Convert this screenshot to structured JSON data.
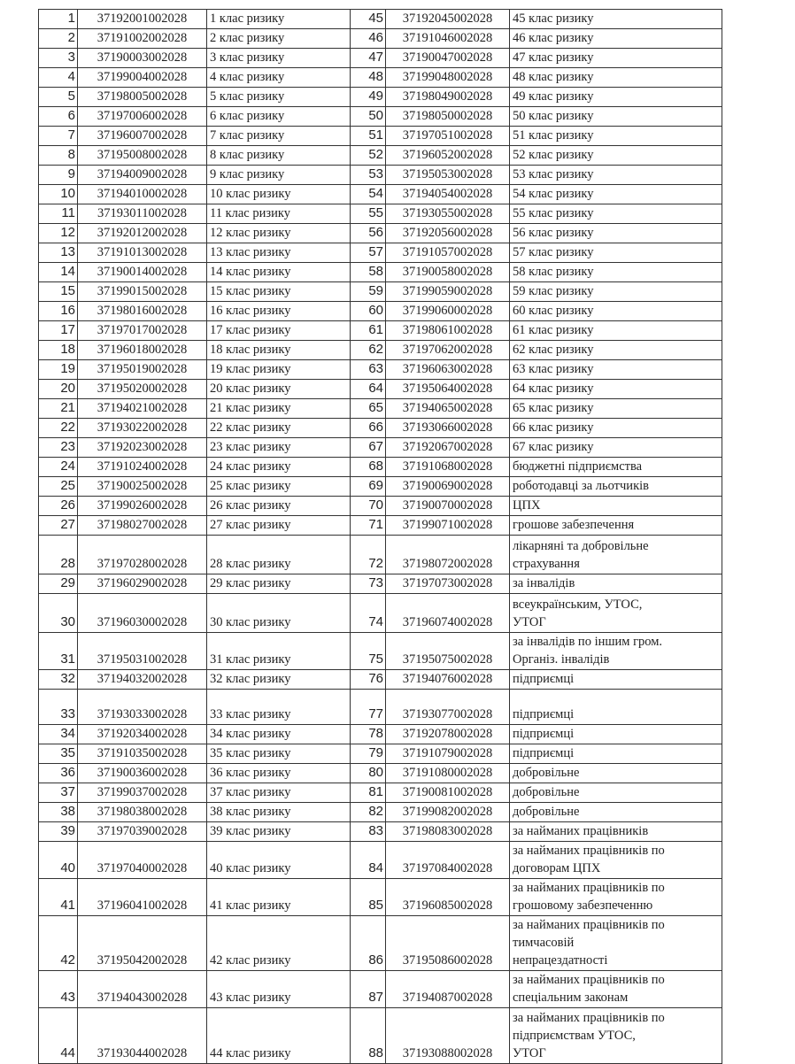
{
  "rows": [
    {
      "n1": "1",
      "c1": "37192001002028",
      "d1": "1 клас ризику",
      "n2": "45",
      "c2": "37192045002028",
      "d2": "45 клас ризику"
    },
    {
      "n1": "2",
      "c1": "37191002002028",
      "d1": "2 клас ризику",
      "n2": "46",
      "c2": "37191046002028",
      "d2": "46 клас ризику"
    },
    {
      "n1": "3",
      "c1": "37190003002028",
      "d1": "3 клас ризику",
      "n2": "47",
      "c2": "37190047002028",
      "d2": "47 клас ризику"
    },
    {
      "n1": "4",
      "c1": "37199004002028",
      "d1": "4 клас ризику",
      "n2": "48",
      "c2": "37199048002028",
      "d2": "48 клас ризику"
    },
    {
      "n1": "5",
      "c1": "37198005002028",
      "d1": "5 клас ризику",
      "n2": "49",
      "c2": "37198049002028",
      "d2": "49 клас ризику"
    },
    {
      "n1": "6",
      "c1": "37197006002028",
      "d1": "6 клас ризику",
      "n2": "50",
      "c2": "37198050002028",
      "d2": "50 клас ризику"
    },
    {
      "n1": "7",
      "c1": "37196007002028",
      "d1": "7 клас ризику",
      "n2": "51",
      "c2": "37197051002028",
      "d2": "51 клас ризику"
    },
    {
      "n1": "8",
      "c1": "37195008002028",
      "d1": "8 клас ризику",
      "n2": "52",
      "c2": "37196052002028",
      "d2": "52 клас ризику"
    },
    {
      "n1": "9",
      "c1": "37194009002028",
      "d1": "9 клас ризику",
      "n2": "53",
      "c2": "37195053002028",
      "d2": "53 клас ризику"
    },
    {
      "n1": "10",
      "c1": "37194010002028",
      "d1": "10 клас ризику",
      "n2": "54",
      "c2": "37194054002028",
      "d2": "54 клас ризику"
    },
    {
      "n1": "11",
      "c1": "37193011002028",
      "d1": "11 клас ризику",
      "n2": "55",
      "c2": "37193055002028",
      "d2": "55 клас ризику"
    },
    {
      "n1": "12",
      "c1": "37192012002028",
      "d1": "12 клас ризику",
      "n2": "56",
      "c2": "37192056002028",
      "d2": "56 клас ризику"
    },
    {
      "n1": "13",
      "c1": "37191013002028",
      "d1": "13 клас ризику",
      "n2": "57",
      "c2": "37191057002028",
      "d2": "57 клас ризику"
    },
    {
      "n1": "14",
      "c1": "37190014002028",
      "d1": "14 клас ризику",
      "n2": "58",
      "c2": "37190058002028",
      "d2": "58 клас ризику"
    },
    {
      "n1": "15",
      "c1": "37199015002028",
      "d1": "15 клас ризику",
      "n2": "59",
      "c2": "37199059002028",
      "d2": "59 клас ризику"
    },
    {
      "n1": "16",
      "c1": "37198016002028",
      "d1": "16 клас ризику",
      "n2": "60",
      "c2": "37199060002028",
      "d2": "60 клас ризику"
    },
    {
      "n1": "17",
      "c1": "37197017002028",
      "d1": "17 клас ризику",
      "n2": "61",
      "c2": "37198061002028",
      "d2": "61 клас ризику"
    },
    {
      "n1": "18",
      "c1": "37196018002028",
      "d1": "18 клас ризику",
      "n2": "62",
      "c2": "37197062002028",
      "d2": "62 клас ризику"
    },
    {
      "n1": "19",
      "c1": "37195019002028",
      "d1": "19 клас ризику",
      "n2": "63",
      "c2": "37196063002028",
      "d2": "63 клас ризику"
    },
    {
      "n1": "20",
      "c1": "37195020002028",
      "d1": "20 клас ризику",
      "n2": "64",
      "c2": "37195064002028",
      "d2": "64 клас ризику"
    },
    {
      "n1": "21",
      "c1": "37194021002028",
      "d1": "21 клас ризику",
      "n2": "65",
      "c2": "37194065002028",
      "d2": "65 клас ризику"
    },
    {
      "n1": "22",
      "c1": "37193022002028",
      "d1": "22 клас ризику",
      "n2": "66",
      "c2": "37193066002028",
      "d2": "66 клас ризику"
    },
    {
      "n1": "23",
      "c1": "37192023002028",
      "d1": "23 клас ризику",
      "n2": "67",
      "c2": "37192067002028",
      "d2": "67 клас ризику"
    },
    {
      "n1": "24",
      "c1": "37191024002028",
      "d1": "24 клас ризику",
      "n2": "68",
      "c2": "37191068002028",
      "d2": "бюджетні підприємства"
    },
    {
      "n1": "25",
      "c1": "37190025002028",
      "d1": "25 клас ризику",
      "n2": "69",
      "c2": "37190069002028",
      "d2": "роботодавці за льотчиків"
    },
    {
      "n1": "26",
      "c1": "37199026002028",
      "d1": "26 клас ризику",
      "n2": "70",
      "c2": "37190070002028",
      "d2": "ЦПХ"
    },
    {
      "n1": "27",
      "c1": "37198027002028",
      "d1": "27 клас ризику",
      "n2": "71",
      "c2": "37199071002028",
      "d2": "грошове забезпечення"
    },
    {
      "n1": "28",
      "c1": "37197028002028",
      "d1": "28 клас ризику",
      "n2": "72",
      "c2": "37198072002028",
      "d2": "лікарняні та добровільне\nстрахування"
    },
    {
      "n1": "29",
      "c1": "37196029002028",
      "d1": "29 клас ризику",
      "n2": "73",
      "c2": "37197073002028",
      "d2": "за інвалідів"
    },
    {
      "n1": "30",
      "c1": "37196030002028",
      "d1": "30 клас ризику",
      "n2": "74",
      "c2": "37196074002028",
      "d2": "всеукраїнським, УТОС,\nУТОГ"
    },
    {
      "n1": "31",
      "c1": "37195031002028",
      "d1": "31 клас ризику",
      "n2": "75",
      "c2": "37195075002028",
      "d2": "за інвалідів по іншим гром.\nОрганіз. інвалідів"
    },
    {
      "n1": "32",
      "c1": "37194032002028",
      "d1": "32 клас ризику",
      "n2": "76",
      "c2": "37194076002028",
      "d2": "підприємці"
    },
    {
      "n1": "33",
      "c1": "37193033002028",
      "d1": "33 клас ризику",
      "n2": "77",
      "c2": "37193077002028",
      "d2": "підприємці"
    },
    {
      "n1": "34",
      "c1": "37192034002028",
      "d1": "34 клас ризику",
      "n2": "78",
      "c2": "37192078002028",
      "d2": "підприємці"
    },
    {
      "n1": "35",
      "c1": "37191035002028",
      "d1": "35 клас ризику",
      "n2": "79",
      "c2": "37191079002028",
      "d2": "підприємці"
    },
    {
      "n1": "36",
      "c1": "37190036002028",
      "d1": "36 клас ризику",
      "n2": "80",
      "c2": "37191080002028",
      "d2": "добровільне"
    },
    {
      "n1": "37",
      "c1": "37199037002028",
      "d1": "37 клас ризику",
      "n2": "81",
      "c2": "37190081002028",
      "d2": "добровільне"
    },
    {
      "n1": "38",
      "c1": "37198038002028",
      "d1": "38 клас ризику",
      "n2": "82",
      "c2": "37199082002028",
      "d2": "добровільне"
    },
    {
      "n1": "39",
      "c1": "37197039002028",
      "d1": "39 клас ризику",
      "n2": "83",
      "c2": "37198083002028",
      "d2": "за найманих працівників"
    },
    {
      "n1": "40",
      "c1": "37197040002028",
      "d1": "40 клас ризику",
      "n2": "84",
      "c2": "37197084002028",
      "d2": "за найманих працівників по\nдоговорам ЦПХ"
    },
    {
      "n1": "41",
      "c1": "37196041002028",
      "d1": "41 клас ризику",
      "n2": "85",
      "c2": "37196085002028",
      "d2": "за найманих працівників по\nгрошовому забезпеченню"
    },
    {
      "n1": "42",
      "c1": "37195042002028",
      "d1": "42 клас ризику",
      "n2": "86",
      "c2": "37195086002028",
      "d2": "за найманих працівників по\nтимчасовій\nнепрацездатності"
    },
    {
      "n1": "43",
      "c1": "37194043002028",
      "d1": "43 клас ризику",
      "n2": "87",
      "c2": "37194087002028",
      "d2": "за найманих працівників по\nспеціальним законам"
    },
    {
      "n1": "44",
      "c1": "37193044002028",
      "d1": "44 клас ризику",
      "n2": "88",
      "c2": "37193088002028",
      "d2": "за найманих працівників по\nпідприємствам УТОС,\nУТОГ"
    }
  ]
}
